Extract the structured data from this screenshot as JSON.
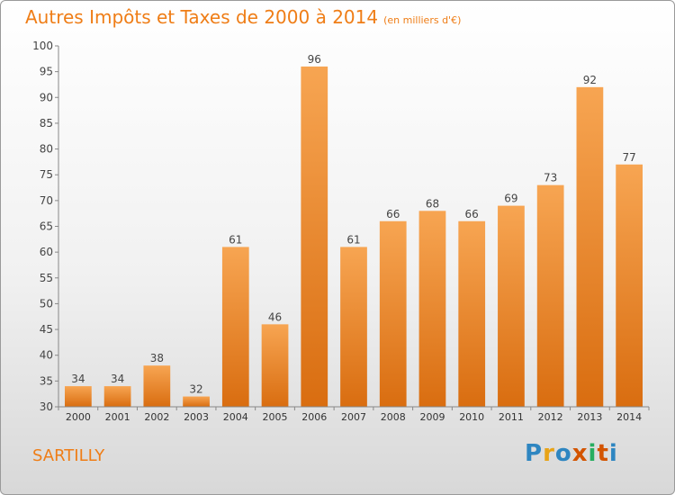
{
  "header": {
    "title": "Autres Impôts et Taxes de 2000 à 2014",
    "subtitle": "(en milliers d'€)"
  },
  "footer": {
    "commune": "SARTILLY",
    "logo": [
      "P",
      "r",
      "o",
      "x",
      "i",
      "t",
      "i"
    ],
    "logo_colors": [
      "#2e86c1",
      "#e8a317",
      "#2e86c1",
      "#d35400",
      "#27ae60",
      "#d35400",
      "#2e86c1"
    ]
  },
  "colors": {
    "accent": "#ef7d16",
    "bar_top": "#f7a552",
    "bar_bottom": "#d96d10"
  },
  "chart_data": {
    "type": "bar",
    "title": "Autres Impôts et Taxes de 2000 à 2014",
    "subtitle": "(en milliers d'€)",
    "categories": [
      "2000",
      "2001",
      "2002",
      "2003",
      "2004",
      "2005",
      "2006",
      "2007",
      "2008",
      "2009",
      "2010",
      "2011",
      "2012",
      "2013",
      "2014"
    ],
    "values": [
      34,
      34,
      38,
      32,
      61,
      46,
      96,
      61,
      66,
      68,
      66,
      69,
      73,
      92,
      77
    ],
    "ylim": [
      30,
      100
    ],
    "yticks": [
      30,
      35,
      40,
      45,
      50,
      55,
      60,
      65,
      70,
      75,
      80,
      85,
      90,
      95,
      100
    ],
    "grid": false,
    "data_labels": true
  }
}
